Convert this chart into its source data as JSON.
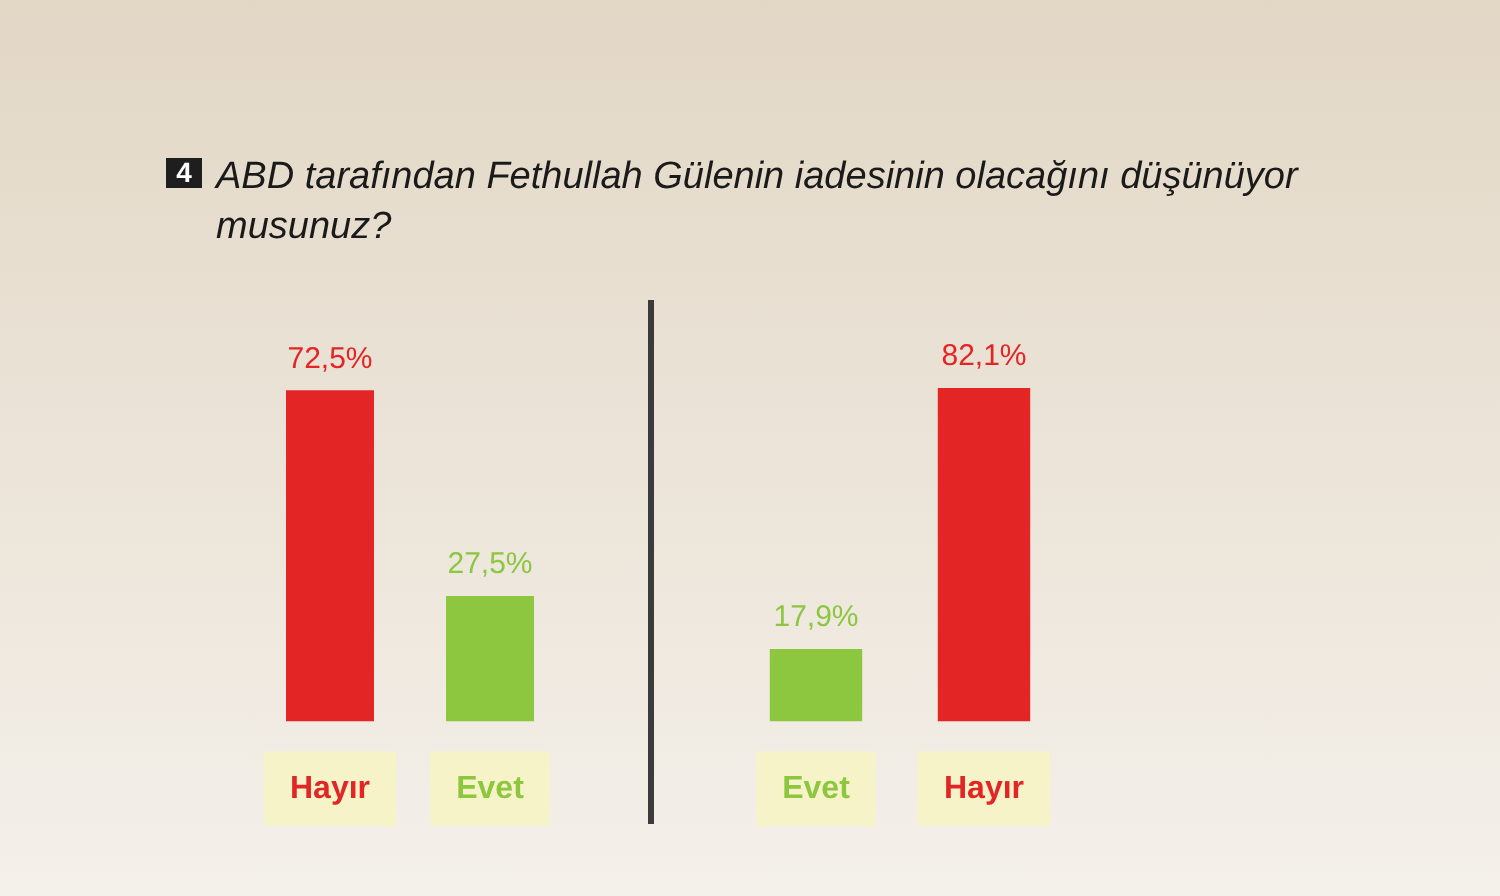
{
  "chart_data": [
    {
      "type": "bar",
      "title": "ABD tarafından Fethullah Gülenin iadesinin olacağını düşünüyor musunuz?",
      "annotations": [
        "4"
      ],
      "categories": [
        "Hayır",
        "Evet"
      ],
      "values": [
        72.5,
        27.5
      ],
      "colors": [
        "#e32526",
        "#8dc63f"
      ],
      "value_labels": [
        "72,5%",
        "27,5%"
      ],
      "tick_labels": "x"
    },
    {
      "type": "bar",
      "categories": [
        "Evet",
        "Hayır"
      ],
      "values": [
        17.9,
        82.1
      ],
      "colors": [
        "#8dc63f",
        "#e32526"
      ],
      "value_labels": [
        "17,9%",
        "82,1%"
      ],
      "tick_labels": "x"
    }
  ]
}
